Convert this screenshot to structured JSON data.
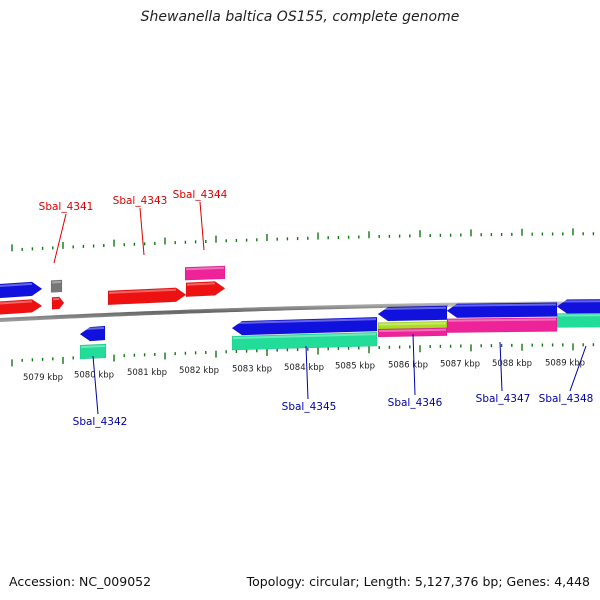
{
  "title": "Shewanella baltica OS155, complete genome",
  "footer": {
    "accession": "Accession: NC_009052",
    "topology": "Topology: circular; Length: 5,127,376 bp; Genes: 4,448"
  },
  "colors": {
    "red": "#ee1111",
    "blue": "#1111dd",
    "pink": "#ee2299",
    "teal": "#22dd99",
    "lime": "#aadd22",
    "gray": "#777777",
    "backbone": "#888888",
    "tick": "#117711",
    "label_red": "#dd0000",
    "label_blue": "#0000aa"
  },
  "kbp_labels": [
    "5079 kbp",
    "5080 kbp",
    "5081 kbp",
    "5082 kbp",
    "5083 kbp",
    "5084 kbp",
    "5085 kbp",
    "5086 kbp",
    "5087 kbp",
    "5088 kbp",
    "5089 kbp"
  ],
  "gene_labels": {
    "top": [
      "Sbal_4341",
      "Sbal_4343",
      "Sbal_4344"
    ],
    "bottom": [
      "Sbal_4342",
      "Sbal_4345",
      "Sbal_4346",
      "Sbal_4347",
      "Sbal_4348"
    ]
  }
}
